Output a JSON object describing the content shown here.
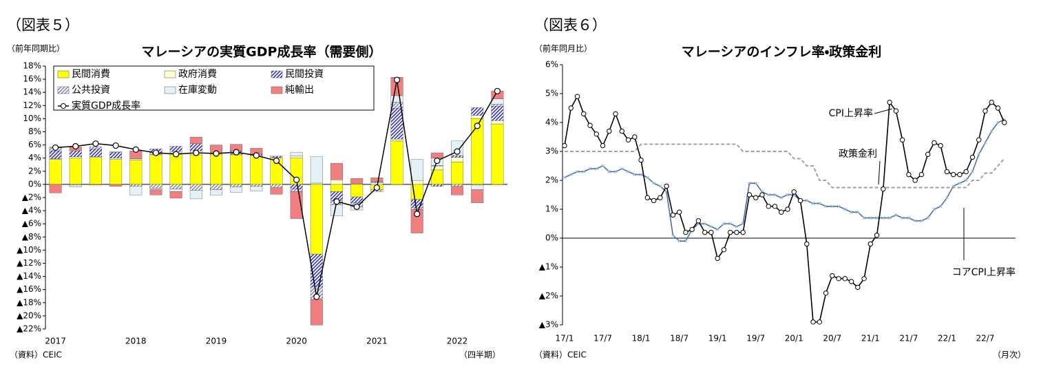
{
  "chart_data": [
    {
      "type": "bar",
      "stacked": true,
      "caption": "（図表５）",
      "title": "マレーシアの実質GDP成長率（需要側）",
      "y_unit_label": "（前年同期比）",
      "source": "（資料）CEIC",
      "x_unit_label": "（四半期）",
      "categories": [
        "2017",
        null,
        null,
        null,
        "2018",
        null,
        null,
        null,
        "2019",
        null,
        null,
        null,
        "2020",
        null,
        null,
        null,
        "2021",
        null,
        null,
        null,
        "2022",
        null,
        null
      ],
      "ylim": [
        -22,
        18
      ],
      "yticks": [
        {
          "value": 18,
          "label": "18%"
        },
        {
          "value": 16,
          "label": "16%"
        },
        {
          "value": 14,
          "label": "14%"
        },
        {
          "value": 12,
          "label": "12%"
        },
        {
          "value": 10,
          "label": "10%"
        },
        {
          "value": 8,
          "label": "8%"
        },
        {
          "value": 6,
          "label": "6%"
        },
        {
          "value": 4,
          "label": "4%"
        },
        {
          "value": 2,
          "label": "2%"
        },
        {
          "value": 0,
          "label": "0%"
        },
        {
          "value": -2,
          "label": "▲2%"
        },
        {
          "value": -4,
          "label": "▲4%"
        },
        {
          "value": -6,
          "label": "▲6%"
        },
        {
          "value": -8,
          "label": "▲8%"
        },
        {
          "value": -10,
          "label": "▲10%"
        },
        {
          "value": -12,
          "label": "▲12%"
        },
        {
          "value": -14,
          "label": "▲14%"
        },
        {
          "value": -16,
          "label": "▲16%"
        },
        {
          "value": -18,
          "label": "▲18%"
        },
        {
          "value": -20,
          "label": "▲20%"
        },
        {
          "value": -22,
          "label": "▲22%"
        }
      ],
      "series": [
        {
          "name": "民間消費",
          "color": "#ffff00",
          "values": [
            3.8,
            4.0,
            4.1,
            3.8,
            3.7,
            4.5,
            4.8,
            4.5,
            4.6,
            4.5,
            4.4,
            4.0,
            4.0,
            -10.6,
            -1.1,
            -1.9,
            -0.8,
            6.6,
            -2.3,
            2.2,
            3.4,
            10.0,
            9.2
          ]
        },
        {
          "name": "政府消費",
          "color": "#ffffcc",
          "values": [
            0.1,
            0.2,
            0.1,
            0.2,
            0.2,
            0.1,
            0.2,
            0.6,
            0.1,
            0.1,
            0.0,
            0.1,
            0.3,
            0.2,
            0.7,
            0.1,
            0.3,
            0.3,
            0.6,
            0.6,
            0.7,
            0.5,
            0.5
          ]
        },
        {
          "name": "民間投資",
          "color": "#3333cc",
          "hatch": true,
          "values": [
            1.2,
            0.9,
            1.2,
            0.9,
            0.0,
            0.8,
            0.8,
            1.1,
            0.0,
            0.5,
            0.2,
            0.2,
            -0.7,
            -5.0,
            -1.4,
            -0.9,
            0.1,
            4.7,
            -1.2,
            -0.3,
            0.3,
            1.2,
            2.2
          ]
        },
        {
          "name": "公共投資",
          "color": "#8888bb",
          "hatch": true,
          "values": [
            0.5,
            -0.1,
            0.3,
            0.0,
            -0.3,
            -0.6,
            -0.7,
            -0.9,
            -0.8,
            -0.4,
            -0.3,
            -0.5,
            -0.4,
            -1.9,
            -0.6,
            -0.6,
            -0.3,
            0.9,
            -0.3,
            0.1,
            -0.3,
            -0.1,
            0.3
          ]
        },
        {
          "name": "在庫変動",
          "color": "#e4f1f6",
          "values": [
            0.1,
            -0.3,
            0.0,
            0.1,
            -1.3,
            -0.2,
            -0.4,
            -1.3,
            -0.8,
            -0.8,
            -0.7,
            0.0,
            0.6,
            4.0,
            -1.7,
            -0.5,
            0.1,
            1.0,
            3.2,
            1.1,
            2.2,
            -0.7,
            0.8
          ]
        },
        {
          "name": "純輸出",
          "color": "#f08080",
          "values": [
            -1.3,
            0.6,
            -0.1,
            -0.3,
            1.2,
            -0.8,
            -1.0,
            1.0,
            1.3,
            1.0,
            0.9,
            -1.0,
            -4.1,
            -3.9,
            2.5,
            0.8,
            0.5,
            2.8,
            -3.6,
            0.8,
            -1.3,
            -2.0,
            1.2
          ]
        },
        {
          "name": "実質GDP成長率",
          "type": "line",
          "color": "#000000",
          "values": [
            5.6,
            5.8,
            6.2,
            5.9,
            5.3,
            4.8,
            4.6,
            4.8,
            4.7,
            4.9,
            4.4,
            3.6,
            0.7,
            -17.1,
            -2.6,
            -3.4,
            -0.5,
            15.9,
            -4.5,
            3.6,
            5.0,
            8.9,
            14.2
          ]
        }
      ]
    },
    {
      "type": "line",
      "caption": "（図表６）",
      "title": "マレーシアのインフレ率・政策金利",
      "y_unit_label": "（前年同月比）",
      "source": "（資料）CEIC",
      "x_unit_label": "（月次）",
      "categories": [
        "17/1",
        null,
        null,
        null,
        null,
        null,
        "17/7",
        null,
        null,
        null,
        null,
        null,
        "18/1",
        null,
        null,
        null,
        null,
        null,
        "18/7",
        null,
        null,
        null,
        null,
        null,
        "19/1",
        null,
        null,
        null,
        null,
        null,
        "19/7",
        null,
        null,
        null,
        null,
        null,
        "20/1",
        null,
        null,
        null,
        null,
        null,
        "20/7",
        null,
        null,
        null,
        null,
        null,
        "21/1",
        null,
        null,
        null,
        null,
        null,
        "21/7",
        null,
        null,
        null,
        null,
        null,
        "22/1",
        null,
        null,
        null,
        null,
        null,
        "22/7",
        null,
        null,
        null
      ],
      "ylim": [
        -3,
        6
      ],
      "yticks": [
        {
          "value": 6,
          "label": "6%"
        },
        {
          "value": 5,
          "label": "5%"
        },
        {
          "value": 4,
          "label": "4%"
        },
        {
          "value": 3,
          "label": "3%"
        },
        {
          "value": 2,
          "label": "2%"
        },
        {
          "value": 1,
          "label": "1%"
        },
        {
          "value": 0,
          "label": "0%"
        },
        {
          "value": -1,
          "label": "▲1%"
        },
        {
          "value": -2,
          "label": "▲2%"
        },
        {
          "value": -3,
          "label": "▲3%"
        }
      ],
      "annotations": [
        "CPI上昇率",
        "政策金利",
        "コアCPI上昇率"
      ],
      "series": [
        {
          "name": "政策金利",
          "color": "#a0a0a0",
          "dashed": true,
          "values": [
            3,
            3,
            3,
            3,
            3,
            3,
            3,
            3,
            3,
            3,
            3,
            3,
            3.25,
            3.25,
            3.25,
            3.25,
            3.25,
            3.25,
            3.25,
            3.25,
            3.25,
            3.25,
            3.25,
            3.25,
            3.25,
            3.25,
            3.25,
            3.25,
            3,
            3,
            3,
            3,
            3,
            3,
            3,
            3,
            2.75,
            2.75,
            2.5,
            2.5,
            2,
            2,
            1.75,
            1.75,
            1.75,
            1.75,
            1.75,
            1.75,
            1.75,
            1.75,
            1.75,
            1.75,
            1.75,
            1.75,
            1.75,
            1.75,
            1.75,
            1.75,
            1.75,
            1.75,
            1.75,
            1.75,
            1.75,
            1.75,
            2,
            2,
            2.25,
            2.25,
            2.5,
            2.75
          ]
        },
        {
          "name": "コアCPI上昇率",
          "color": "#4a6fa5",
          "marker": "cross",
          "values": [
            2.1,
            2.2,
            2.3,
            2.3,
            2.4,
            2.4,
            2.5,
            2.3,
            2.3,
            2.4,
            2.3,
            2.2,
            2.2,
            2.1,
            1.9,
            1.8,
            1.6,
            0.1,
            -0.1,
            -0.1,
            0.3,
            0.5,
            0.5,
            0.4,
            0.3,
            0.5,
            0.5,
            0.4,
            0.5,
            1.9,
            1.9,
            1.6,
            1.5,
            1.5,
            1.4,
            1.5,
            1.5,
            1.3,
            1.3,
            1.2,
            1.2,
            1.1,
            1.1,
            1.1,
            1.0,
            0.9,
            0.9,
            0.7,
            0.7,
            0.7,
            0.7,
            0.7,
            0.8,
            0.7,
            0.7,
            0.6,
            0.6,
            0.7,
            1.0,
            1.1,
            1.4,
            1.8,
            1.9,
            2.0,
            2.3,
            2.9,
            3.3,
            3.7,
            4.0,
            4.1
          ]
        },
        {
          "name": "CPI上昇率",
          "color": "#000000",
          "marker": "circle",
          "values": [
            3.2,
            4.5,
            4.9,
            4.3,
            3.9,
            3.6,
            3.2,
            3.7,
            4.3,
            3.7,
            3.4,
            3.5,
            2.7,
            1.4,
            1.3,
            1.4,
            1.8,
            0.8,
            0.9,
            0.2,
            0.3,
            0.6,
            0.2,
            0.2,
            -0.7,
            -0.4,
            0.2,
            0.2,
            0.2,
            1.5,
            1.4,
            1.5,
            1.1,
            1.1,
            0.9,
            1.0,
            1.6,
            1.3,
            -0.2,
            -2.9,
            -2.9,
            -1.9,
            -1.3,
            -1.4,
            -1.4,
            -1.5,
            -1.7,
            -1.4,
            -0.2,
            0.1,
            1.7,
            4.7,
            4.4,
            3.4,
            2.2,
            2.0,
            2.2,
            2.9,
            3.3,
            3.2,
            2.3,
            2.2,
            2.2,
            2.3,
            2.8,
            3.4,
            4.4,
            4.7,
            4.5,
            4.0
          ]
        }
      ]
    }
  ]
}
